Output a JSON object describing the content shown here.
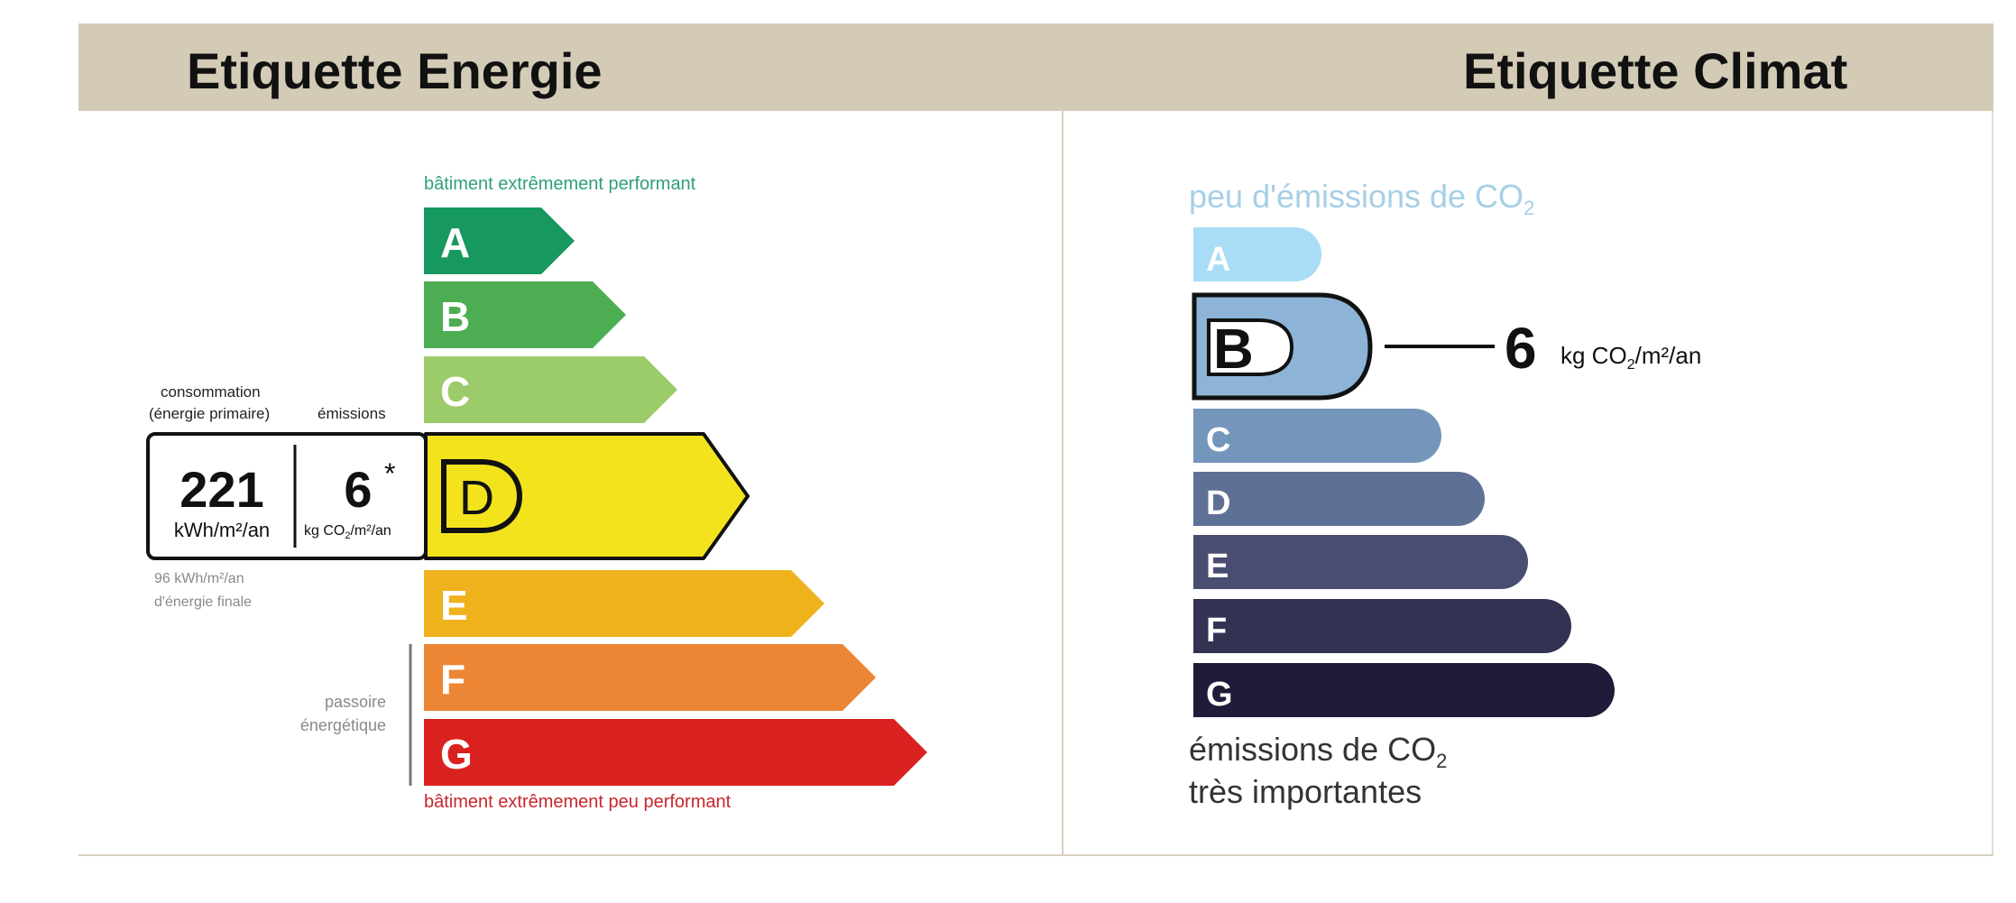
{
  "energie": {
    "title": "Etiquette Energie",
    "top_caption": "bâtiment extrêmement performant",
    "bottom_caption": "bâtiment extrêmement peu performant",
    "classes": [
      {
        "letter": "A",
        "color": "#17985f"
      },
      {
        "letter": "B",
        "color": "#4dad52"
      },
      {
        "letter": "C",
        "color": "#9ccb6a"
      },
      {
        "letter": "D",
        "color": "#f2e31d"
      },
      {
        "letter": "E",
        "color": "#efb21d"
      },
      {
        "letter": "F",
        "color": "#ec8534"
      },
      {
        "letter": "G",
        "color": "#d9221f"
      }
    ],
    "current_class": "D",
    "consommation_label_1": "consommation",
    "consommation_label_2": "(énergie primaire)",
    "emissions_label": "émissions",
    "consommation_value": "221",
    "consommation_unit": "kWh/m²/an",
    "emissions_value": "6",
    "emissions_asterisk": "*",
    "emissions_unit_kg": "kg CO",
    "emissions_unit_sub": "2",
    "emissions_unit_rest": "/m²/an",
    "final_energy_1": "96 kWh/m²/an",
    "final_energy_2": "d'énergie finale",
    "passoire_1": "passoire",
    "passoire_2": "énergétique"
  },
  "climat": {
    "title": "Etiquette Climat",
    "top_caption": "peu d'émissions de CO",
    "top_caption_sub": "2",
    "bottom_caption_1": "émissions de CO",
    "bottom_caption_sub": "2",
    "bottom_caption_2": "très importantes",
    "classes": [
      {
        "letter": "A",
        "color": "#a9dcf5"
      },
      {
        "letter": "B",
        "color": "#8db4d6"
      },
      {
        "letter": "C",
        "color": "#7596bb"
      },
      {
        "letter": "D",
        "color": "#5e7195"
      },
      {
        "letter": "E",
        "color": "#4a4d72"
      },
      {
        "letter": "F",
        "color": "#333253"
      },
      {
        "letter": "G",
        "color": "#211a38"
      }
    ],
    "current_class": "B",
    "value": "6",
    "unit_kg": "kg CO",
    "unit_sub": "2",
    "unit_rest": "/m²/an"
  },
  "colors": {
    "header_bg": "#d4cbb7",
    "energie_top_caption": "#2e9f79",
    "energie_bottom_caption": "#c8262b",
    "climat_top_caption": "#a6cfe6"
  }
}
